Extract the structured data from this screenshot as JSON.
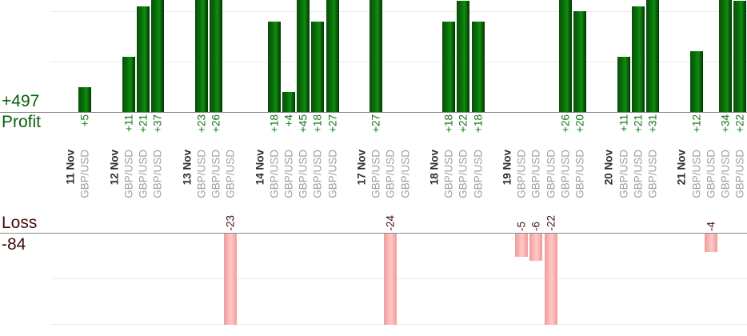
{
  "left_labels": {
    "profit_total": "+497",
    "profit_axis": "Profit",
    "loss_axis": "Loss",
    "loss_total": "-84"
  },
  "chart_data": {
    "type": "bar",
    "title": "",
    "legend": "none",
    "grid": true,
    "panels": {
      "profit": {
        "label": "Profit",
        "total": 497,
        "total_label": "+497",
        "visible_ylim": [
          0,
          22.5
        ],
        "gridline_interval": 10,
        "note": "bars larger than ~22 are clipped at top edge"
      },
      "loss": {
        "label": "Loss",
        "total": -84,
        "total_label": "-84",
        "visible_ylim": [
          0,
          -20
        ],
        "gridline_interval": 10,
        "note": "bars larger than ~-20 are clipped at bottom gridline"
      }
    },
    "groups": [
      {
        "date": "11 Nov",
        "trades": [
          {
            "instrument": "GBP/USD",
            "value": 5,
            "value_label": "+5"
          }
        ]
      },
      {
        "date": "12 Nov",
        "trades": [
          {
            "instrument": "GBP/USD",
            "value": 11,
            "value_label": "+11"
          },
          {
            "instrument": "GBP/USD",
            "value": 21,
            "value_label": "+21"
          },
          {
            "instrument": "GBP/USD",
            "value": 37,
            "value_label": "+37"
          }
        ]
      },
      {
        "date": "13 Nov",
        "trades": [
          {
            "instrument": "GBP/USD",
            "value": 23,
            "value_label": "+23"
          },
          {
            "instrument": "GBP/USD",
            "value": 26,
            "value_label": "+26"
          },
          {
            "instrument": "GBP/USD",
            "value": -23,
            "value_label": "-23"
          }
        ]
      },
      {
        "date": "14 Nov",
        "trades": [
          {
            "instrument": "GBP/USD",
            "value": 18,
            "value_label": "+18"
          },
          {
            "instrument": "GBP/USD",
            "value": 4,
            "value_label": "+4"
          },
          {
            "instrument": "GBP/USD",
            "value": 45,
            "value_label": "+45"
          },
          {
            "instrument": "GBP/USD",
            "value": 18,
            "value_label": "+18"
          },
          {
            "instrument": "GBP/USD",
            "value": 27,
            "value_label": "+27"
          }
        ]
      },
      {
        "date": "17 Nov",
        "trades": [
          {
            "instrument": "GBP/USD",
            "value": 27,
            "value_label": "+27"
          },
          {
            "instrument": "GBP/USD",
            "value": -24,
            "value_label": "-24"
          },
          {
            "instrument": "GBP/USD",
            "value": 0,
            "value_label": ""
          }
        ]
      },
      {
        "date": "18 Nov",
        "trades": [
          {
            "instrument": "GBP/USD",
            "value": 18,
            "value_label": "+18"
          },
          {
            "instrument": "GBP/USD",
            "value": 22,
            "value_label": "+22"
          },
          {
            "instrument": "GBP/USD",
            "value": 18,
            "value_label": "+18"
          }
        ]
      },
      {
        "date": "19 Nov",
        "trades": [
          {
            "instrument": "GBP/USD",
            "value": -5,
            "value_label": "-5"
          },
          {
            "instrument": "GBP/USD",
            "value": -6,
            "value_label": "-6"
          },
          {
            "instrument": "GBP/USD",
            "value": -22,
            "value_label": "-22"
          },
          {
            "instrument": "GBP/USD",
            "value": 26,
            "value_label": "+26"
          },
          {
            "instrument": "GBP/USD",
            "value": 20,
            "value_label": "+20"
          }
        ]
      },
      {
        "date": "20 Nov",
        "trades": [
          {
            "instrument": "GBP/USD",
            "value": 11,
            "value_label": "+11"
          },
          {
            "instrument": "GBP/USD",
            "value": 21,
            "value_label": "+21"
          },
          {
            "instrument": "GBP/USD",
            "value": 31,
            "value_label": "+31"
          }
        ]
      },
      {
        "date": "21 Nov",
        "trades": [
          {
            "instrument": "GBP/USD",
            "value": 12,
            "value_label": "+12"
          },
          {
            "instrument": "GBP/USD",
            "value": -4,
            "value_label": "-4"
          },
          {
            "instrument": "GBP/USD",
            "value": 34,
            "value_label": "+34"
          },
          {
            "instrument": "GBP/USD",
            "value": 22,
            "value_label": "+22"
          }
        ]
      }
    ]
  },
  "colors": {
    "profit_text": "#0b5e0b",
    "profit_value_text": "#117611",
    "loss_text": "#400b0b",
    "loss_value_text": "#451010",
    "date_text": "#2e2e2e",
    "instrument_text": "#9e9e9e",
    "axis_line": "#8a8a8a",
    "gridline": "#ececec",
    "profit_bar_edge": "#085008",
    "profit_bar_mid": "#0b6e0b",
    "profit_bar_light": "#0e8e0e",
    "profit_bar_darkedge": "#043204",
    "loss_bar_dark": "#f09b9b",
    "loss_bar_mid": "#f5a6a6",
    "loss_bar_light": "#ffc9c9"
  }
}
